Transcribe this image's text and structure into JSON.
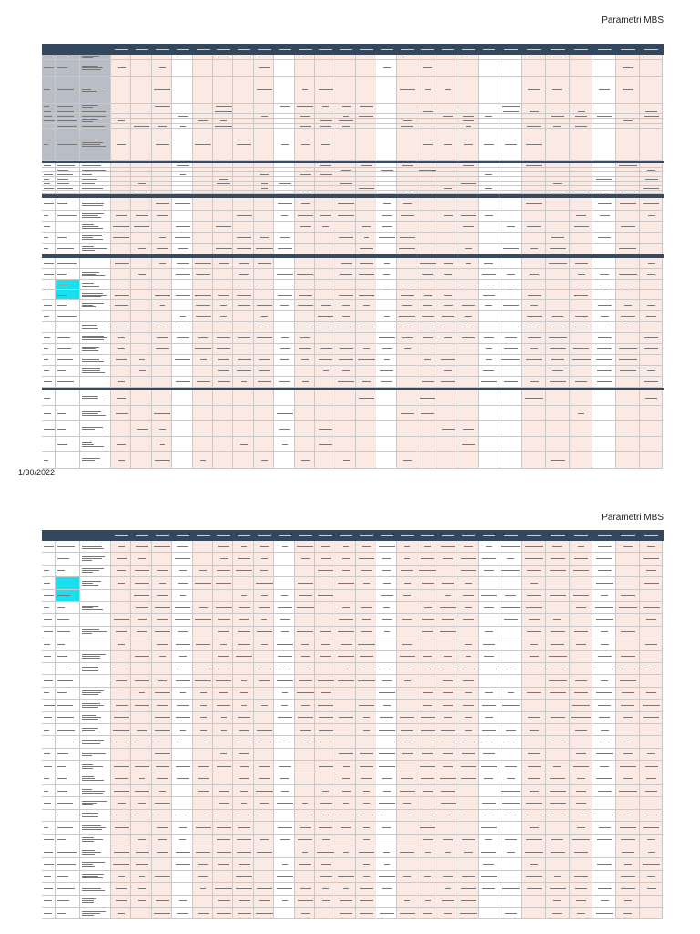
{
  "pages": [
    {
      "header_title": "Parametri MBS",
      "footer_date": "1/30/2022"
    },
    {
      "header_title": "Parametri MBS"
    }
  ],
  "colors": {
    "header_bg": "#33475e",
    "cell_pink": "#fbe9e3",
    "cell_white": "#ffffff",
    "label_gray": "#b9bec6",
    "highlight_cyan": "#19e0ee",
    "separator": "#3a4a5c"
  }
}
